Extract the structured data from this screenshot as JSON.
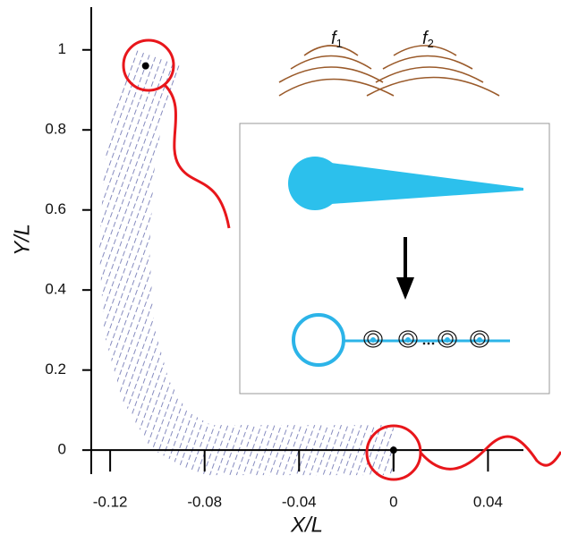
{
  "chart_data": {
    "type": "line",
    "xlabel": "X/L",
    "ylabel": "Y/L",
    "xlim": [
      -0.128,
      0.055
    ],
    "ylim": [
      -0.06,
      1.1
    ],
    "xticks": [
      -0.12,
      -0.08,
      -0.04,
      0,
      0.04
    ],
    "yticks": [
      0,
      0.2,
      0.4,
      0.6,
      0.8,
      1
    ],
    "series": [
      {
        "color": "#7a80b8",
        "x": [
          0.0,
          -0.04,
          -0.08,
          -0.095,
          -0.105,
          -0.112,
          -0.114,
          -0.112,
          -0.108,
          -0.1
        ],
        "values": [
          0.0,
          0.0,
          0.0,
          0.05,
          0.15,
          0.3,
          0.5,
          0.7,
          0.85,
          0.98
        ]
      }
    ],
    "points": {
      "color": "#000000",
      "x": [
        -0.105,
        0
      ],
      "values": [
        0.96,
        0
      ]
    },
    "annotations": [
      {
        "text": "f",
        "sub": "1"
      },
      {
        "text": "f",
        "sub": "2"
      }
    ]
  }
}
